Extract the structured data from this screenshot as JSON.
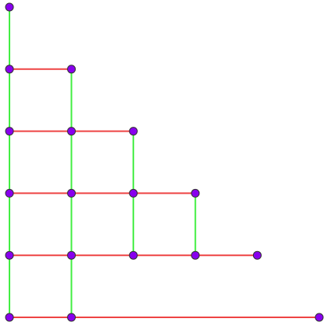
{
  "colors": {
    "vertical_edge": "#44ee44",
    "horizontal_edge": "#ee4444",
    "node_fill": "#8800ee",
    "node_stroke": "#333333",
    "background": "#ffffff"
  },
  "graph": {
    "columns": 6,
    "rows": 6,
    "nodes": [
      {
        "id": "n-0-0",
        "col": 0,
        "row": 0
      },
      {
        "id": "n-0-1",
        "col": 0,
        "row": 1
      },
      {
        "id": "n-1-1",
        "col": 1,
        "row": 1
      },
      {
        "id": "n-0-2",
        "col": 0,
        "row": 2
      },
      {
        "id": "n-1-2",
        "col": 1,
        "row": 2
      },
      {
        "id": "n-2-2",
        "col": 2,
        "row": 2
      },
      {
        "id": "n-0-3",
        "col": 0,
        "row": 3
      },
      {
        "id": "n-1-3",
        "col": 1,
        "row": 3
      },
      {
        "id": "n-2-3",
        "col": 2,
        "row": 3
      },
      {
        "id": "n-3-3",
        "col": 3,
        "row": 3
      },
      {
        "id": "n-0-4",
        "col": 0,
        "row": 4
      },
      {
        "id": "n-1-4",
        "col": 1,
        "row": 4
      },
      {
        "id": "n-2-4",
        "col": 2,
        "row": 4
      },
      {
        "id": "n-3-4",
        "col": 3,
        "row": 4
      },
      {
        "id": "n-4-4",
        "col": 4,
        "row": 4
      },
      {
        "id": "n-0-5",
        "col": 0,
        "row": 5
      },
      {
        "id": "n-1-5",
        "col": 1,
        "row": 5
      },
      {
        "id": "n-5-5",
        "col": 5,
        "row": 5
      }
    ],
    "vertical_edges": [
      {
        "from": "n-0-0",
        "to": "n-0-1"
      },
      {
        "from": "n-0-1",
        "to": "n-0-2"
      },
      {
        "from": "n-0-2",
        "to": "n-0-3"
      },
      {
        "from": "n-0-3",
        "to": "n-0-4"
      },
      {
        "from": "n-0-4",
        "to": "n-0-5"
      },
      {
        "from": "n-1-1",
        "to": "n-1-2"
      },
      {
        "from": "n-1-2",
        "to": "n-1-3"
      },
      {
        "from": "n-1-3",
        "to": "n-1-4"
      },
      {
        "from": "n-1-4",
        "to": "n-1-5"
      },
      {
        "from": "n-2-2",
        "to": "n-2-3"
      },
      {
        "from": "n-2-3",
        "to": "n-2-4"
      },
      {
        "from": "n-3-3",
        "to": "n-3-4"
      }
    ],
    "horizontal_edges": [
      {
        "from": "n-0-1",
        "to": "n-1-1"
      },
      {
        "from": "n-0-2",
        "to": "n-1-2"
      },
      {
        "from": "n-1-2",
        "to": "n-2-2"
      },
      {
        "from": "n-0-3",
        "to": "n-1-3"
      },
      {
        "from": "n-1-3",
        "to": "n-2-3"
      },
      {
        "from": "n-2-3",
        "to": "n-3-3"
      },
      {
        "from": "n-0-4",
        "to": "n-1-4"
      },
      {
        "from": "n-1-4",
        "to": "n-2-4"
      },
      {
        "from": "n-2-4",
        "to": "n-3-4"
      },
      {
        "from": "n-3-4",
        "to": "n-4-4"
      },
      {
        "from": "n-0-5",
        "to": "n-1-5"
      },
      {
        "from": "n-1-5",
        "to": "n-5-5"
      }
    ]
  }
}
